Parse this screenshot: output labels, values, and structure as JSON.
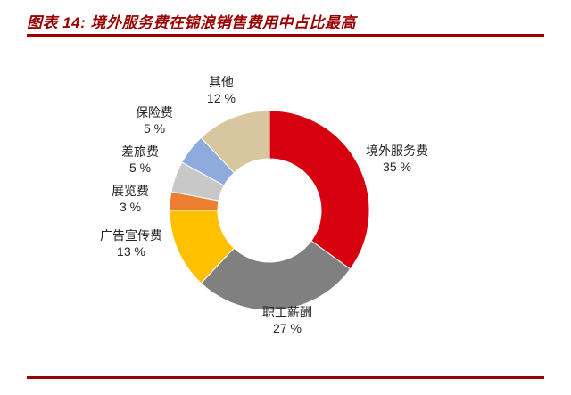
{
  "header": {
    "title": "图表 14: 境外服务费在锦浪销售费用中占比最高"
  },
  "colors": {
    "accent_rule": "#990000",
    "title_text": "#990000",
    "label_text": "#262626"
  },
  "chart_data": {
    "type": "pie",
    "subtype": "donut",
    "title": "图表 14: 境外服务费在锦浪销售费用中占比最高",
    "unit": "%",
    "start_angle_deg": 0,
    "direction": "clockwise",
    "inner_radius_ratio": 0.52,
    "legend_position": "outside-labels",
    "categories": [
      "境外服务费",
      "职工薪酬",
      "广告宣传费",
      "展览费",
      "差旅费",
      "保险费",
      "其他"
    ],
    "values": [
      35,
      27,
      13,
      3,
      5,
      5,
      12
    ],
    "slices": [
      {
        "label": "境外服务费",
        "value": 35,
        "pct_text": "35 %",
        "color": "#D7000F"
      },
      {
        "label": "职工薪酬",
        "value": 27,
        "pct_text": "27 %",
        "color": "#808080"
      },
      {
        "label": "广告宣传费",
        "value": 13,
        "pct_text": "13 %",
        "color": "#FFC000"
      },
      {
        "label": "展览费",
        "value": 3,
        "pct_text": "3 %",
        "color": "#ED7D31"
      },
      {
        "label": "差旅费",
        "value": 5,
        "pct_text": "5 %",
        "color": "#C8C8C8"
      },
      {
        "label": "保险费",
        "value": 5,
        "pct_text": "5 %",
        "color": "#8FAADC"
      },
      {
        "label": "其他",
        "value": 12,
        "pct_text": "12 %",
        "color": "#D8C79E"
      }
    ]
  }
}
